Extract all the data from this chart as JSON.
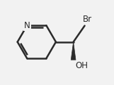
{
  "bg_color": "#f2f2f2",
  "line_color": "#2b2b2b",
  "text_color": "#2b2b2b",
  "bond_width": 1.8,
  "wedge_color": "#2b2b2b",
  "label_Br": "Br",
  "label_N": "N",
  "label_OH": "OH",
  "font_size_labels": 8.5,
  "fig_width": 1.61,
  "fig_height": 1.21,
  "dpi": 100,
  "xlim": [
    0,
    10
  ],
  "ylim": [
    0,
    7.5
  ]
}
